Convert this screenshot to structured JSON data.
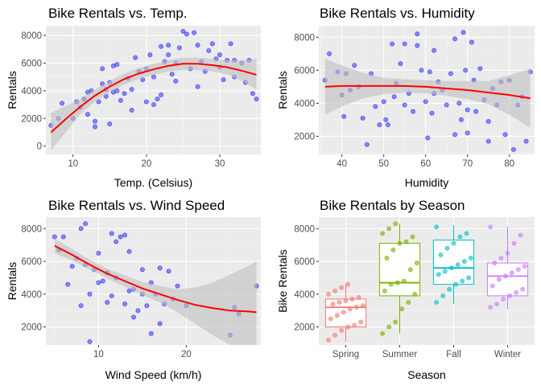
{
  "chart_data": [
    {
      "type": "scatter",
      "title": "Bike Rentals vs. Temp.",
      "xlabel": "Temp. (Celsius)",
      "ylabel": "Rentals",
      "xlim": [
        6.3,
        35.6
      ],
      "ylim": [
        -600,
        8700
      ],
      "xticks": [
        10,
        20,
        30
      ],
      "yticks": [
        0,
        2000,
        4000,
        6000,
        8000
      ],
      "grid": true,
      "colors": {
        "points": "#3333ff",
        "trend": "#ff0000",
        "band": "#bfbfbf",
        "panel": "#ebebeb"
      },
      "points": [
        [
          7,
          1500
        ],
        [
          8,
          2000
        ],
        [
          8.5,
          3100
        ],
        [
          10,
          2000
        ],
        [
          10.5,
          3200
        ],
        [
          11,
          2800
        ],
        [
          11.5,
          3400
        ],
        [
          12,
          2300
        ],
        [
          12,
          3900
        ],
        [
          12.5,
          4000
        ],
        [
          13,
          1800
        ],
        [
          13,
          1400
        ],
        [
          13.5,
          3200
        ],
        [
          14,
          4500
        ],
        [
          14,
          5600
        ],
        [
          14.5,
          4100
        ],
        [
          14.5,
          3600
        ],
        [
          15,
          1600
        ],
        [
          15,
          4600
        ],
        [
          15.5,
          3900
        ],
        [
          15.5,
          5800
        ],
        [
          16,
          4000
        ],
        [
          16,
          5900
        ],
        [
          16.5,
          3300
        ],
        [
          17,
          3800
        ],
        [
          17.5,
          4900
        ],
        [
          18,
          4100
        ],
        [
          18,
          2600
        ],
        [
          18.5,
          6400
        ],
        [
          19,
          5400
        ],
        [
          19.5,
          4800
        ],
        [
          20,
          3200
        ],
        [
          20,
          5600
        ],
        [
          20.5,
          6600
        ],
        [
          21,
          5000
        ],
        [
          21,
          3000
        ],
        [
          21.5,
          3400
        ],
        [
          22,
          7200
        ],
        [
          22,
          3700
        ],
        [
          22.5,
          6100
        ],
        [
          23,
          6600
        ],
        [
          23,
          7300
        ],
        [
          23.5,
          5200
        ],
        [
          24,
          4700
        ],
        [
          24,
          6000
        ],
        [
          24.5,
          7100
        ],
        [
          25,
          8300
        ],
        [
          25.5,
          8100
        ],
        [
          26,
          5600
        ],
        [
          26.5,
          8200
        ],
        [
          27,
          4300
        ],
        [
          27,
          7300
        ],
        [
          27.5,
          6100
        ],
        [
          28,
          5400
        ],
        [
          28.5,
          6900
        ],
        [
          29,
          7400
        ],
        [
          29.5,
          6300
        ],
        [
          30,
          5700
        ],
        [
          30,
          6600
        ],
        [
          30.5,
          4800
        ],
        [
          31,
          6200
        ],
        [
          31.5,
          7400
        ],
        [
          32,
          5000
        ],
        [
          32,
          6200
        ],
        [
          33,
          6000
        ],
        [
          33.5,
          4600
        ],
        [
          34,
          6200
        ],
        [
          34.5,
          3800
        ],
        [
          35,
          3400
        ]
      ],
      "trend": [
        [
          7,
          1000
        ],
        [
          9,
          1950
        ],
        [
          11,
          2850
        ],
        [
          13,
          3650
        ],
        [
          15,
          4300
        ],
        [
          17,
          4850
        ],
        [
          19,
          5250
        ],
        [
          21,
          5550
        ],
        [
          23,
          5800
        ],
        [
          25,
          5950
        ],
        [
          27,
          5950
        ],
        [
          29,
          5850
        ],
        [
          31,
          5700
        ],
        [
          33,
          5450
        ],
        [
          35,
          5150
        ]
      ],
      "band": [
        [
          7,
          -300,
          2400
        ],
        [
          9,
          1000,
          2900
        ],
        [
          11,
          2300,
          3400
        ],
        [
          13,
          3200,
          4100
        ],
        [
          15,
          3900,
          4700
        ],
        [
          17,
          4450,
          5250
        ],
        [
          19,
          4850,
          5650
        ],
        [
          21,
          5150,
          5950
        ],
        [
          23,
          5400,
          6200
        ],
        [
          25,
          5500,
          6400
        ],
        [
          27,
          5500,
          6400
        ],
        [
          29,
          5400,
          6300
        ],
        [
          31,
          5200,
          6200
        ],
        [
          33,
          4700,
          6200
        ],
        [
          35,
          4100,
          6300
        ]
      ]
    },
    {
      "type": "scatter",
      "title": "Bike Rentals vs. Humidity",
      "xlabel": "Humidity",
      "ylabel": "Rentals",
      "xlim": [
        34.5,
        86
      ],
      "ylim": [
        900,
        8700
      ],
      "xticks": [
        40,
        50,
        60,
        70,
        80
      ],
      "yticks": [
        2000,
        4000,
        6000,
        8000
      ],
      "grid": true,
      "colors": {
        "points": "#3333ff",
        "trend": "#ff0000",
        "band": "#bfbfbf",
        "panel": "#ebebeb"
      },
      "points": [
        [
          36,
          5400
        ],
        [
          37,
          7000
        ],
        [
          39,
          5900
        ],
        [
          40,
          4500
        ],
        [
          40.5,
          3200
        ],
        [
          41,
          5800
        ],
        [
          42,
          4800
        ],
        [
          43,
          6300
        ],
        [
          44,
          5000
        ],
        [
          45,
          3100
        ],
        [
          46,
          1500
        ],
        [
          47,
          5800
        ],
        [
          48,
          3800
        ],
        [
          49,
          2700
        ],
        [
          50,
          4100
        ],
        [
          50.5,
          3000
        ],
        [
          51,
          2700
        ],
        [
          52,
          7600
        ],
        [
          52.5,
          4400
        ],
        [
          53,
          5200
        ],
        [
          54,
          6400
        ],
        [
          55,
          3900
        ],
        [
          55,
          7600
        ],
        [
          56,
          4600
        ],
        [
          57,
          3500
        ],
        [
          58,
          7500
        ],
        [
          58,
          8200
        ],
        [
          59,
          6000
        ],
        [
          60,
          4100
        ],
        [
          60.5,
          1900
        ],
        [
          61,
          5900
        ],
        [
          61.5,
          3400
        ],
        [
          62,
          7200
        ],
        [
          62,
          4600
        ],
        [
          63,
          5300
        ],
        [
          64,
          4800
        ],
        [
          65,
          3900
        ],
        [
          66,
          5800
        ],
        [
          67,
          7900
        ],
        [
          67,
          2100
        ],
        [
          68,
          4000
        ],
        [
          68.5,
          3000
        ],
        [
          69,
          8300
        ],
        [
          69.5,
          6000
        ],
        [
          70,
          3600
        ],
        [
          70,
          2200
        ],
        [
          71,
          7700
        ],
        [
          71.5,
          5400
        ],
        [
          72,
          3500
        ],
        [
          73,
          6100
        ],
        [
          74,
          4200
        ],
        [
          75,
          1700
        ],
        [
          75,
          2900
        ],
        [
          76,
          4900
        ],
        [
          77,
          3900
        ],
        [
          78,
          5300
        ],
        [
          79,
          2100
        ],
        [
          80,
          5400
        ],
        [
          81,
          1200
        ],
        [
          82,
          3900
        ],
        [
          83,
          4400
        ],
        [
          84,
          1700
        ],
        [
          85,
          5900
        ]
      ],
      "trend": [
        [
          36,
          5000
        ],
        [
          40,
          5050
        ],
        [
          45,
          5050
        ],
        [
          50,
          5050
        ],
        [
          55,
          5050
        ],
        [
          60,
          5000
        ],
        [
          65,
          4900
        ],
        [
          70,
          4800
        ],
        [
          75,
          4650
        ],
        [
          80,
          4500
        ],
        [
          85,
          4300
        ]
      ],
      "band": [
        [
          36,
          3300,
          6700
        ],
        [
          40,
          3800,
          6300
        ],
        [
          45,
          4300,
          5850
        ],
        [
          50,
          4550,
          5550
        ],
        [
          55,
          4650,
          5450
        ],
        [
          60,
          4600,
          5400
        ],
        [
          65,
          4450,
          5350
        ],
        [
          70,
          4250,
          5350
        ],
        [
          75,
          3950,
          5350
        ],
        [
          80,
          3300,
          5700
        ],
        [
          85,
          2500,
          6100
        ]
      ]
    },
    {
      "type": "scatter",
      "title": "Bike Rentals vs. Wind Speed",
      "xlabel": "Wind Speed (km/h)",
      "ylabel": "Rentals",
      "xlim": [
        4,
        28.5
      ],
      "ylim": [
        900,
        8700
      ],
      "xticks": [
        10,
        20
      ],
      "yticks": [
        2000,
        4000,
        6000,
        8000
      ],
      "grid": true,
      "colors": {
        "points": "#3333ff",
        "trend": "#ff0000",
        "band": "#bfbfbf",
        "panel": "#ebebeb"
      },
      "points": [
        [
          5,
          7500
        ],
        [
          5.5,
          6700
        ],
        [
          6,
          7500
        ],
        [
          6.5,
          4600
        ],
        [
          7,
          5700
        ],
        [
          7.5,
          6200
        ],
        [
          8,
          8000
        ],
        [
          8,
          3300
        ],
        [
          8.5,
          5800
        ],
        [
          8.5,
          8300
        ],
        [
          9,
          4000
        ],
        [
          9,
          1100
        ],
        [
          9.5,
          5500
        ],
        [
          10,
          4700
        ],
        [
          10,
          6500
        ],
        [
          10.5,
          4800
        ],
        [
          11,
          5300
        ],
        [
          11,
          3500
        ],
        [
          11.5,
          3900
        ],
        [
          11.5,
          7700
        ],
        [
          12,
          7200
        ],
        [
          12,
          5000
        ],
        [
          12.5,
          7500
        ],
        [
          13,
          7600
        ],
        [
          13,
          3400
        ],
        [
          13.5,
          4200
        ],
        [
          13.5,
          6600
        ],
        [
          14,
          4300
        ],
        [
          14,
          2600
        ],
        [
          14.5,
          3000
        ],
        [
          15,
          5500
        ],
        [
          15,
          4000
        ],
        [
          15.5,
          3300
        ],
        [
          16,
          1600
        ],
        [
          16,
          4700
        ],
        [
          16.5,
          4000
        ],
        [
          17,
          5600
        ],
        [
          17,
          2200
        ],
        [
          17.5,
          3400
        ],
        [
          18,
          5400
        ],
        [
          18.5,
          3700
        ],
        [
          19,
          4500
        ],
        [
          20,
          3300
        ],
        [
          25,
          1500
        ],
        [
          25.5,
          3200
        ],
        [
          26,
          2800
        ],
        [
          28,
          4500
        ]
      ],
      "trend": [
        [
          5,
          6950
        ],
        [
          7,
          6400
        ],
        [
          9,
          5800
        ],
        [
          11,
          5250
        ],
        [
          13,
          4800
        ],
        [
          15,
          4350
        ],
        [
          17,
          4000
        ],
        [
          19,
          3650
        ],
        [
          21,
          3350
        ],
        [
          23,
          3150
        ],
        [
          25,
          3000
        ],
        [
          27,
          2950
        ],
        [
          28,
          2900
        ]
      ],
      "band": [
        [
          5,
          6500,
          7400
        ],
        [
          7,
          6050,
          6750
        ],
        [
          9,
          5500,
          6100
        ],
        [
          11,
          4950,
          5550
        ],
        [
          13,
          4450,
          5150
        ],
        [
          15,
          3950,
          4750
        ],
        [
          17,
          3500,
          4500
        ],
        [
          19,
          2900,
          4300
        ],
        [
          21,
          2200,
          4400
        ],
        [
          23,
          1500,
          4700
        ],
        [
          25,
          900,
          5200
        ],
        [
          27,
          900,
          5700
        ],
        [
          28,
          900,
          6000
        ]
      ]
    },
    {
      "type": "box",
      "title": "Bike Rentals by Season",
      "xlabel": "Season",
      "ylabel": "Bike Rentals",
      "categories": [
        "Spring",
        "Summer",
        "Fall",
        "Winter"
      ],
      "ylim": [
        900,
        8700
      ],
      "yticks": [
        2000,
        4000,
        6000,
        8000
      ],
      "grid": true,
      "colors": [
        "#f8766d",
        "#7cae00",
        "#00bfc4",
        "#c77cff"
      ],
      "boxes": [
        {
          "min": 1100,
          "q1": 2000,
          "median": 3200,
          "q3": 3700,
          "max": 4600
        },
        {
          "min": 1600,
          "q1": 3900,
          "median": 4700,
          "q3": 7100,
          "max": 8300
        },
        {
          "min": 3400,
          "q1": 4600,
          "median": 5600,
          "q3": 7300,
          "max": 8200
        },
        {
          "min": 3100,
          "q1": 3900,
          "median": 5100,
          "q3": 5900,
          "max": 8100
        }
      ],
      "jitter": [
        [
          1200,
          1500,
          1800,
          2000,
          2100,
          2300,
          2500,
          2700,
          2900,
          3100,
          3200,
          3300,
          3400,
          3500,
          3600,
          3700,
          3800,
          4000,
          4200,
          4400,
          4600
        ],
        [
          1600,
          2000,
          2300,
          3100,
          3500,
          4000,
          4200,
          4600,
          4700,
          4800,
          5500,
          5900,
          6200,
          6700,
          7100,
          7200,
          7500,
          7700,
          8000,
          8300
        ],
        [
          3500,
          3900,
          4300,
          4600,
          4800,
          5000,
          5200,
          5400,
          5600,
          5800,
          6000,
          6200,
          6400,
          6800,
          7100,
          7500,
          7700,
          8100
        ],
        [
          3200,
          3400,
          3700,
          3900,
          4100,
          4300,
          4500,
          4900,
          5100,
          5300,
          5500,
          5700,
          5900,
          6200,
          6500,
          7100,
          7600,
          8100
        ]
      ]
    }
  ]
}
